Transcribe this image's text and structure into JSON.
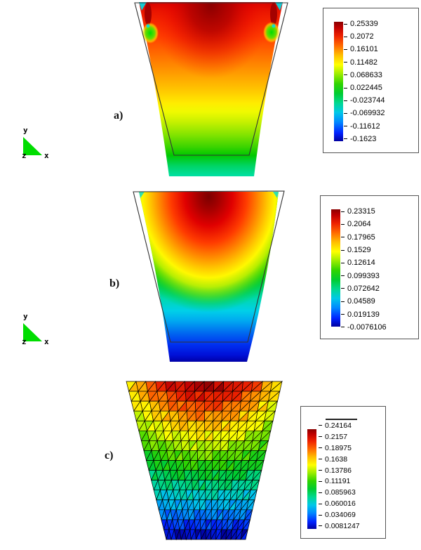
{
  "figure": {
    "panels": [
      {
        "id": "a",
        "label": "a)"
      },
      {
        "id": "b",
        "label": "b)"
      },
      {
        "id": "c",
        "label": "c)"
      }
    ],
    "axis_triad": {
      "x": "x",
      "y": "y",
      "z": "z"
    }
  },
  "chart_data": [
    {
      "panel": "a",
      "type": "heatmap",
      "description": "Contour field on deformed trapezoidal plate over undeformed outline; maximum (dark red) at top edge, concentration spots near top corners, minimum (green) at bottom.",
      "legend_labels": [
        "0.25339",
        "0.2072",
        "0.16101",
        "0.11482",
        "0.068633",
        "0.022445",
        "-0.023744",
        "-0.069932",
        "-0.11612",
        "-0.1623"
      ],
      "values": [
        0.25339,
        0.2072,
        0.16101,
        0.11482,
        0.068633,
        0.022445,
        -0.023744,
        -0.069932,
        -0.11612,
        -0.1623
      ],
      "range": [
        -0.1623,
        0.25339
      ],
      "legend_position": "right"
    },
    {
      "panel": "b",
      "type": "heatmap",
      "description": "Smooth contour field on deformed trapezoidal plate; dark-red dome at top centre, green mid region, dark blue at bottom edge.",
      "legend_labels": [
        "0.23315",
        "0.2064",
        "0.17965",
        "0.1529",
        "0.12614",
        "0.099393",
        "0.072642",
        "0.04589",
        "0.019139",
        "-0.0076106"
      ],
      "values": [
        0.23315,
        0.2064,
        0.17965,
        0.1529,
        0.12614,
        0.099393,
        0.072642,
        0.04589,
        0.019139,
        -0.0076106
      ],
      "range": [
        -0.0076106,
        0.23315
      ],
      "legend_position": "right"
    },
    {
      "panel": "c",
      "type": "heatmap",
      "description": "Triangular finite-element mesh on trapezoidal domain, per-element colouring in horizontal bands from red (top) to dark blue (bottom).",
      "legend_labels": [
        "0.24164",
        "0.2157",
        "0.18975",
        "0.1638",
        "0.13786",
        "0.11191",
        "0.085963",
        "0.060016",
        "0.034069",
        "0.0081247"
      ],
      "values": [
        0.24164,
        0.2157,
        0.18975,
        0.1638,
        0.13786,
        0.11191,
        0.085963,
        0.060016,
        0.034069,
        0.0081247
      ],
      "range": [
        0.0081247,
        0.24164
      ],
      "mesh": {
        "rows": 16,
        "cols": 16,
        "element": "triangle"
      },
      "legend_position": "right"
    }
  ],
  "colors": {
    "triad_green": "#00dd00",
    "mesh_line": "#000000",
    "colormap_stops": [
      [
        0.0,
        "#0000a0"
      ],
      [
        0.07,
        "#0022ff"
      ],
      [
        0.16,
        "#0088ff"
      ],
      [
        0.24,
        "#00c8e8"
      ],
      [
        0.32,
        "#00d890"
      ],
      [
        0.4,
        "#00cc30"
      ],
      [
        0.48,
        "#30d400"
      ],
      [
        0.56,
        "#98ec00"
      ],
      [
        0.64,
        "#ffff00"
      ],
      [
        0.72,
        "#ffbe00"
      ],
      [
        0.8,
        "#ff6a00"
      ],
      [
        0.88,
        "#ee2200"
      ],
      [
        0.95,
        "#c00000"
      ],
      [
        1.0,
        "#8b0000"
      ]
    ]
  }
}
